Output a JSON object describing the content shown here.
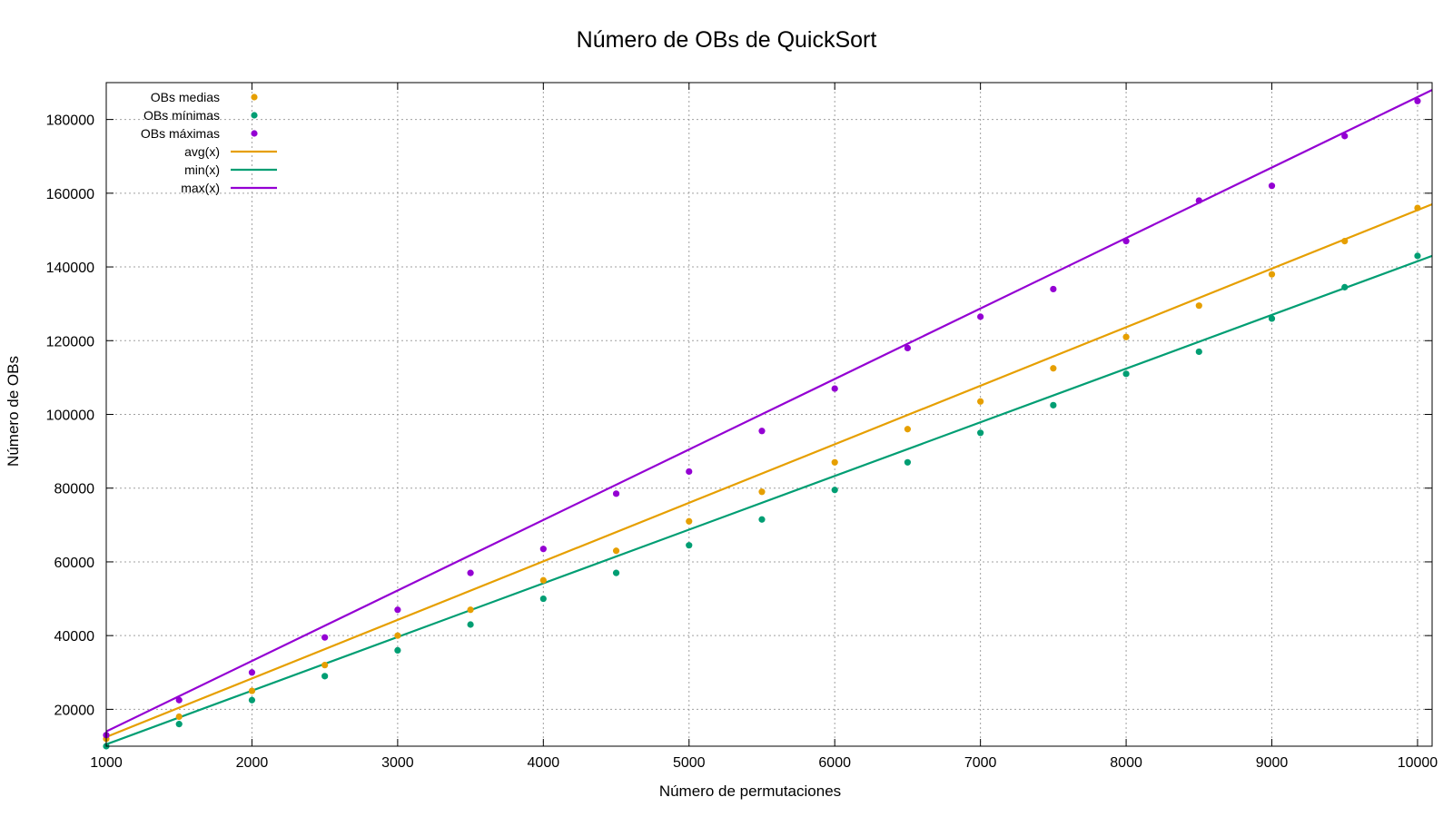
{
  "chart_data": {
    "type": "scatter",
    "title": "Número de OBs de QuickSort",
    "xlabel": "Número de permutaciones",
    "ylabel": "Número de OBs",
    "xlim": [
      1000,
      10100
    ],
    "ylim": [
      10000,
      190000
    ],
    "xticks": [
      1000,
      2000,
      3000,
      4000,
      5000,
      6000,
      7000,
      8000,
      9000,
      10000
    ],
    "yticks": [
      20000,
      40000,
      60000,
      80000,
      100000,
      120000,
      140000,
      160000,
      180000
    ],
    "grid": true,
    "legend_position": "top-left",
    "x": [
      1000,
      1500,
      2000,
      2500,
      3000,
      3500,
      4000,
      4500,
      5000,
      5500,
      6000,
      6500,
      7000,
      7500,
      8000,
      8500,
      9000,
      9500,
      10000
    ],
    "series": [
      {
        "name": "OBs medias",
        "kind": "points",
        "color": "#e69f00",
        "values": [
          12000,
          18000,
          25000,
          32000,
          40000,
          47000,
          55000,
          63000,
          71000,
          79000,
          87000,
          96000,
          103500,
          112500,
          121000,
          129500,
          138000,
          147000,
          156000
        ]
      },
      {
        "name": "OBs mínimas",
        "kind": "points",
        "color": "#009e73",
        "values": [
          10000,
          16000,
          22500,
          29000,
          36000,
          43000,
          50000,
          57000,
          64500,
          71500,
          79500,
          87000,
          95000,
          102500,
          111000,
          117000,
          126000,
          134500,
          143000
        ]
      },
      {
        "name": "OBs máximas",
        "kind": "points",
        "color": "#9400d3",
        "values": [
          13000,
          22500,
          30000,
          39500,
          47000,
          57000,
          63500,
          78500,
          84500,
          95500,
          107000,
          118000,
          126500,
          134000,
          147000,
          158000,
          162000,
          175500,
          185000
        ]
      },
      {
        "name": "avg(x)",
        "kind": "line",
        "color": "#e69f00",
        "x": [
          1000,
          10100
        ],
        "values": [
          12500,
          157000
        ]
      },
      {
        "name": "min(x)",
        "kind": "line",
        "color": "#009e73",
        "x": [
          1000,
          10100
        ],
        "values": [
          10500,
          143000
        ]
      },
      {
        "name": "max(x)",
        "kind": "line",
        "color": "#9400d3",
        "x": [
          1000,
          10100
        ],
        "values": [
          14000,
          188000
        ]
      }
    ]
  }
}
